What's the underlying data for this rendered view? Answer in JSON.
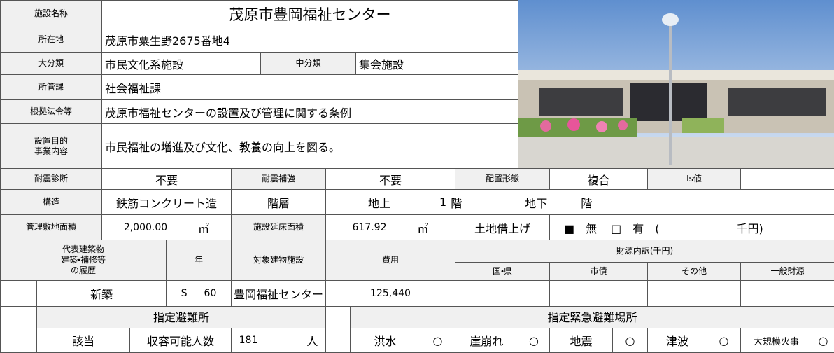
{
  "facility": {
    "label": "施設名称",
    "value": "茂原市豊岡福祉センター"
  },
  "location": {
    "label": "所在地",
    "value": "茂原市粟生野2675番地4"
  },
  "category": {
    "label": "大分類",
    "value": "市民文化系施設",
    "sub_label": "中分類",
    "sub_value": "集会施設"
  },
  "department": {
    "label": "所管課",
    "value": "社会福祉課"
  },
  "legal_basis": {
    "label": "根拠法令等",
    "value": "茂原市福祉センターの設置及び管理に関する条例"
  },
  "purpose": {
    "label_lines": [
      "設置目的",
      "事業内容"
    ],
    "value": "市民福祉の増進及び文化、教養の向上を図る。"
  },
  "seismic": {
    "diagnosis_label": "耐震診断",
    "diagnosis": "不要",
    "reinforcement_label": "耐震補強",
    "reinforcement": "不要",
    "layout_label": "配置形態",
    "layout": "複合",
    "is_label": "Is値"
  },
  "structure": {
    "label": "構造",
    "value": "鉄筋コンクリート造",
    "floors_label": "階層",
    "above_label": "地上",
    "above_floors": 1,
    "floor_unit": "階",
    "below_label": "地下"
  },
  "area": {
    "site_label": "管理敷地面積",
    "site": "2,000.00",
    "unit": "㎡",
    "floor_label": "施設延床面積",
    "floor": "617.92",
    "lease_label": "土地借上げ",
    "lease_none": "■　無",
    "lease_yes": "□　有　(",
    "lease_unit": "千円)"
  },
  "history": {
    "headers": {
      "building": [
        "代表建築物",
        "建築・補修等",
        "の履歴"
      ],
      "year": "年",
      "target": "対象建物施設",
      "cost": "費用",
      "funding": "財源内訳(千円)",
      "funding_cols": [
        "国・県",
        "市債",
        "その他",
        "一般財源"
      ]
    },
    "rows": [
      {
        "type": "新築",
        "era": "S",
        "year": 60,
        "target": "豊岡福祉センター",
        "cost": "125,440"
      }
    ]
  },
  "evacuation": {
    "shelter_label": "指定避難所",
    "shelter": "該当",
    "capacity_label": "収容可能人数",
    "capacity": 181,
    "capacity_unit": "人",
    "emergency_label": "指定緊急避難場所",
    "hazards": [
      {
        "name": "洪水",
        "mark": "○"
      },
      {
        "name": "崖崩れ",
        "mark": "○"
      },
      {
        "name": "地震",
        "mark": "○"
      },
      {
        "name": "津波",
        "mark": "○"
      },
      {
        "name": "大規模火事",
        "mark": "○"
      }
    ]
  }
}
